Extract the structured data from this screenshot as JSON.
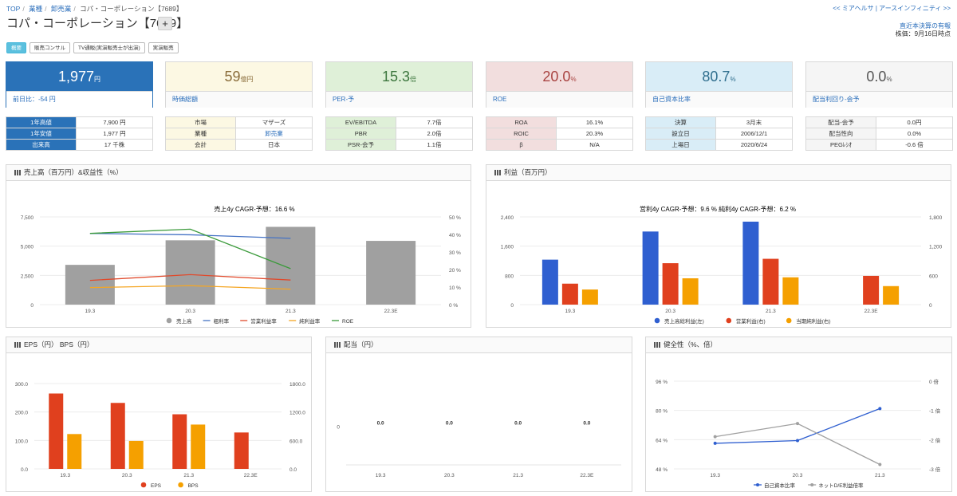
{
  "breadcrumb": [
    "TOP",
    "業種",
    "卸売業",
    "コパ・コーポレーション【7689】"
  ],
  "top_links": "<< ミアヘルサ | アースインフィニティ >>",
  "title": "コパ・コーポレーション【7689】",
  "plus_label": "+",
  "settlement": {
    "label": "直近本決算の有報",
    "date": "株価：9月16日時点"
  },
  "tabs": [
    "概要",
    "販売コンサル",
    "TV通販(実演販売士が出演)",
    "実演販売"
  ],
  "kpis": [
    {
      "value": "1,977",
      "unit": "円",
      "label": "前日比：-54 円"
    },
    {
      "value": "59",
      "unit": "億円",
      "label": "時価総額"
    },
    {
      "value": "15.3",
      "unit": "倍",
      "label": "PER-予"
    },
    {
      "value": "20.0",
      "unit": "%",
      "label": "ROE"
    },
    {
      "value": "80.7",
      "unit": "%",
      "label": "自己資本比率"
    },
    {
      "value": "0.0",
      "unit": "%",
      "label": "配当利回り-会予"
    }
  ],
  "kpi_colors": [
    "#2a72b8",
    "#fcf8e3",
    "#dff0d8",
    "#f2dede",
    "#d9edf7",
    "#f5f5f5"
  ],
  "kpi_text_colors": [
    "#ffffff",
    "#8a6d3b",
    "#3c763d",
    "#a94442",
    "#31708f",
    "#555555"
  ],
  "tables": [
    [
      [
        "1年高値",
        "7,900 円"
      ],
      [
        "1年安値",
        "1,977 円"
      ],
      [
        "出来高",
        "17 千株"
      ]
    ],
    [
      [
        "市場",
        "マザーズ"
      ],
      [
        "業種",
        "卸売業"
      ],
      [
        "会計",
        "日本"
      ]
    ],
    [
      [
        "EV/EBITDA",
        "7.7倍"
      ],
      [
        "PBR",
        "2.0倍"
      ],
      [
        "PSR-会予",
        "1.1倍"
      ]
    ],
    [
      [
        "ROA",
        "16.1%"
      ],
      [
        "ROIC",
        "20.3%"
      ],
      [
        "β",
        "N/A"
      ]
    ],
    [
      [
        "決算",
        "3月末"
      ],
      [
        "設立日",
        "2006/12/1"
      ],
      [
        "上場日",
        "2020/6/24"
      ]
    ],
    [
      [
        "配当-会予",
        "0.0円"
      ],
      [
        "配当性向",
        "0.0%"
      ],
      [
        "PEGﾚｼｵ",
        "-0.6 倍"
      ]
    ]
  ],
  "panels": {
    "sales": {
      "title": "売上高（百万円）&収益性（%）",
      "subtitle": "売上4y CAGR-予想：16.6 %"
    },
    "profit": {
      "title": "利益（百万円）",
      "subtitle": "営利4y CAGR-予想：9.6 %   純利4y CAGR-予想：6.2 %"
    },
    "eps": {
      "title": "EPS（円）  BPS（円）"
    },
    "dividend": {
      "title": "配当（円）"
    },
    "health": {
      "title": "健全性（%、倍）"
    }
  },
  "chart_data": [
    {
      "type": "bar",
      "id": "sales",
      "categories": [
        "19.3",
        "20.3",
        "21.3",
        "22.3E"
      ],
      "y_left_ticks": [
        "7,500",
        "5,000",
        "2,500",
        "0"
      ],
      "y_right_ticks": [
        "50 %",
        "40 %",
        "30 %",
        "20 %",
        "10 %",
        "0 %"
      ],
      "ylim_left": [
        0,
        7500
      ],
      "ylim_right": [
        0,
        50
      ],
      "series": [
        {
          "name": "売上高",
          "kind": "bar",
          "axis": "left",
          "color": "#a0a0a0",
          "values": [
            3400,
            5500,
            6650,
            5450
          ]
        },
        {
          "name": "粗利率",
          "kind": "line",
          "axis": "right",
          "color": "#4472c4",
          "values": [
            40.6,
            39.8,
            37.8,
            null
          ]
        },
        {
          "name": "営業利益率",
          "kind": "line",
          "axis": "right",
          "color": "#e04a2c",
          "values": [
            13.8,
            17.1,
            14.0,
            null
          ]
        },
        {
          "name": "純利益率",
          "kind": "line",
          "axis": "right",
          "color": "#f5a623",
          "values": [
            9.7,
            10.8,
            8.8,
            null
          ]
        },
        {
          "name": "ROE",
          "kind": "line",
          "axis": "right",
          "color": "#3a9a3a",
          "values": [
            40.6,
            43.0,
            20.5,
            null
          ]
        }
      ]
    },
    {
      "type": "bar",
      "id": "profit",
      "categories": [
        "19.3",
        "20.3",
        "21.3",
        "22.3E"
      ],
      "y_left_ticks": [
        "2,400",
        "1,600",
        "800",
        "0"
      ],
      "y_right_ticks": [
        "1,800",
        "1,200",
        "600",
        "0"
      ],
      "ylim_left": [
        0,
        2400
      ],
      "ylim_right": [
        0,
        1800
      ],
      "series": [
        {
          "name": "売上高総利益(左)",
          "kind": "bar",
          "axis": "left",
          "color": "#2f5fd0",
          "values": [
            1230,
            2000,
            2270,
            null
          ]
        },
        {
          "name": "営業利益(右)",
          "kind": "bar",
          "axis": "right",
          "color": "#e0401e",
          "values": [
            430,
            850,
            940,
            590
          ]
        },
        {
          "name": "当期純利益(右)",
          "kind": "bar",
          "axis": "right",
          "color": "#f5a000",
          "values": [
            310,
            540,
            560,
            380
          ]
        }
      ]
    },
    {
      "type": "bar",
      "id": "eps",
      "categories": [
        "19.3",
        "20.3",
        "21.3",
        "22.3E"
      ],
      "y_left_ticks": [
        "300.0",
        "200.0",
        "100.0",
        "0.0"
      ],
      "y_right_ticks": [
        "1800.0",
        "1200.0",
        "600.0",
        "0.0"
      ],
      "ylim_left": [
        0,
        300
      ],
      "ylim_right": [
        0,
        1800
      ],
      "series": [
        {
          "name": "EPS",
          "kind": "bar",
          "axis": "left",
          "color": "#e0401e",
          "values": [
            265,
            232,
            192,
            128
          ]
        },
        {
          "name": "BPS",
          "kind": "bar",
          "axis": "right",
          "color": "#f5a000",
          "values": [
            735,
            590,
            935,
            null
          ]
        }
      ]
    },
    {
      "type": "bar",
      "id": "dividend",
      "categories": [
        "19.3",
        "20.3",
        "21.3",
        "22.3E"
      ],
      "y_left_ticks": [
        "0"
      ],
      "ylim_left": [
        -1,
        1
      ],
      "series": [
        {
          "name": "配当",
          "kind": "bar",
          "axis": "left",
          "color": "#4472c4",
          "values": [
            0.0,
            0.0,
            0.0,
            0.0
          ],
          "labels": [
            "0.0",
            "0.0",
            "0.0",
            "0.0"
          ]
        }
      ]
    },
    {
      "type": "line",
      "id": "health",
      "categories": [
        "19.3",
        "20.3",
        "21.3"
      ],
      "y_left_ticks": [
        "96 %",
        "80 %",
        "64 %",
        "48 %"
      ],
      "y_right_ticks": [
        "0 倍",
        "-1 倍",
        "-2 倍",
        "-3 倍"
      ],
      "ylim_left": [
        48,
        96
      ],
      "ylim_right": [
        -3,
        0
      ],
      "series": [
        {
          "name": "自己資本比率",
          "kind": "line",
          "axis": "left",
          "color": "#2f5fd0",
          "values": [
            62,
            63.5,
            81
          ]
        },
        {
          "name": "ネットD/E利益倍率",
          "kind": "line",
          "axis": "right",
          "color": "#a0a0a0",
          "values": [
            -1.9,
            -1.45,
            -2.85
          ]
        }
      ]
    }
  ]
}
